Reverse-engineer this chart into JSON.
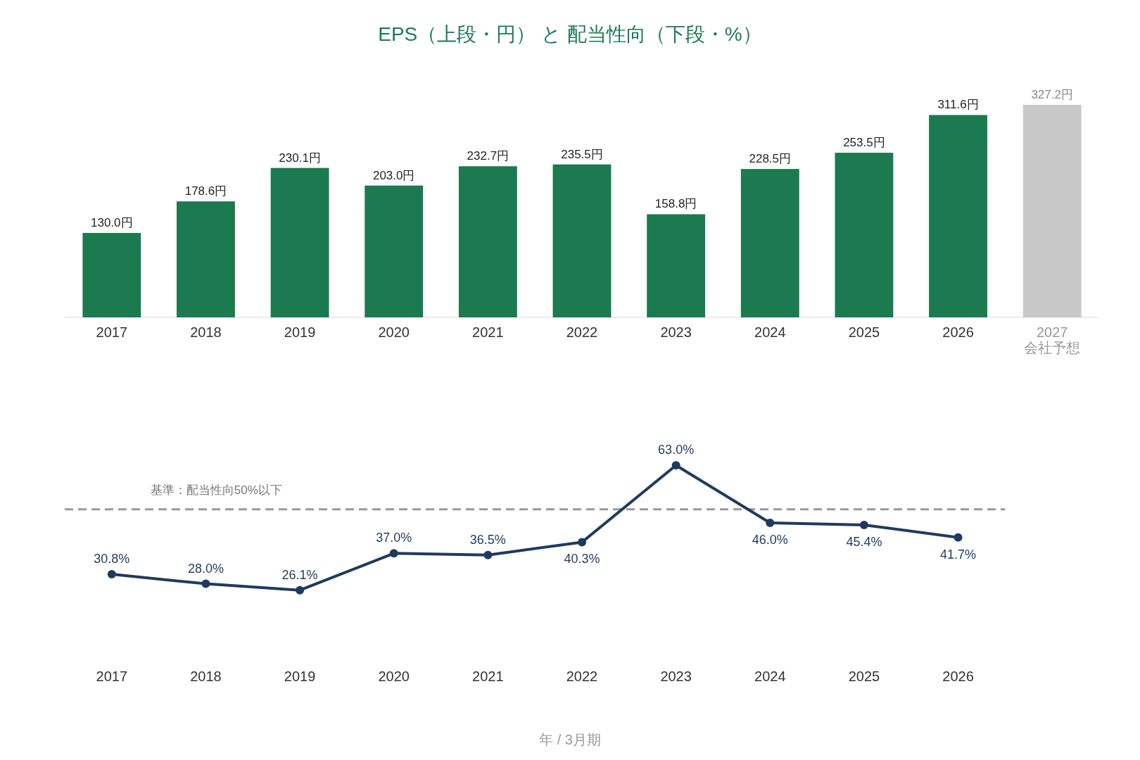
{
  "chart_data": [
    {
      "type": "bar",
      "title": "EPS（上段・円） と 配当性向（下段・%）",
      "categories": [
        "2017",
        "2018",
        "2019",
        "2020",
        "2021",
        "2022",
        "2023",
        "2024",
        "2025",
        "2026",
        "2027\n会社予想"
      ],
      "values": [
        130.0,
        178.6,
        230.1,
        203.0,
        232.7,
        235.5,
        158.8,
        228.5,
        253.5,
        311.6,
        327.2
      ],
      "colors": [
        "#1b7a50",
        "#1b7a50",
        "#1b7a50",
        "#1b7a50",
        "#1b7a50",
        "#1b7a50",
        "#1b7a50",
        "#1b7a50",
        "#1b7a50",
        "#1b7a50",
        "#c8c8c8"
      ],
      "value_labels": [
        "130.0円",
        "178.6円",
        "230.1円",
        "203.0円",
        "232.7円",
        "235.5円",
        "158.8円",
        "228.5円",
        "253.5円",
        "311.6円",
        "327.2円"
      ]
    },
    {
      "type": "line",
      "xlabel": "年 / 3月期",
      "categories": [
        "2017",
        "2018",
        "2019",
        "2020",
        "2021",
        "2022",
        "2023",
        "2024",
        "2025",
        "2026"
      ],
      "series": [
        {
          "color": "#1f3a5f",
          "values": [
            30.8,
            28.0,
            26.1,
            37.0,
            36.5,
            40.3,
            63.0,
            46.0,
            45.4,
            41.7
          ],
          "value_labels": [
            "30.8%",
            "28.0%",
            "26.1%",
            "37.0%",
            "36.5%",
            "40.3%",
            "63.0%",
            "46.0%",
            "45.4%",
            "41.7%"
          ]
        }
      ],
      "marker": "circle",
      "line_style": "solid",
      "ref_lines": [
        {
          "axis": "y",
          "value": 50,
          "label": "基準：配当性向50%以下",
          "color": "#999999",
          "line_style": "dashed"
        }
      ]
    }
  ]
}
